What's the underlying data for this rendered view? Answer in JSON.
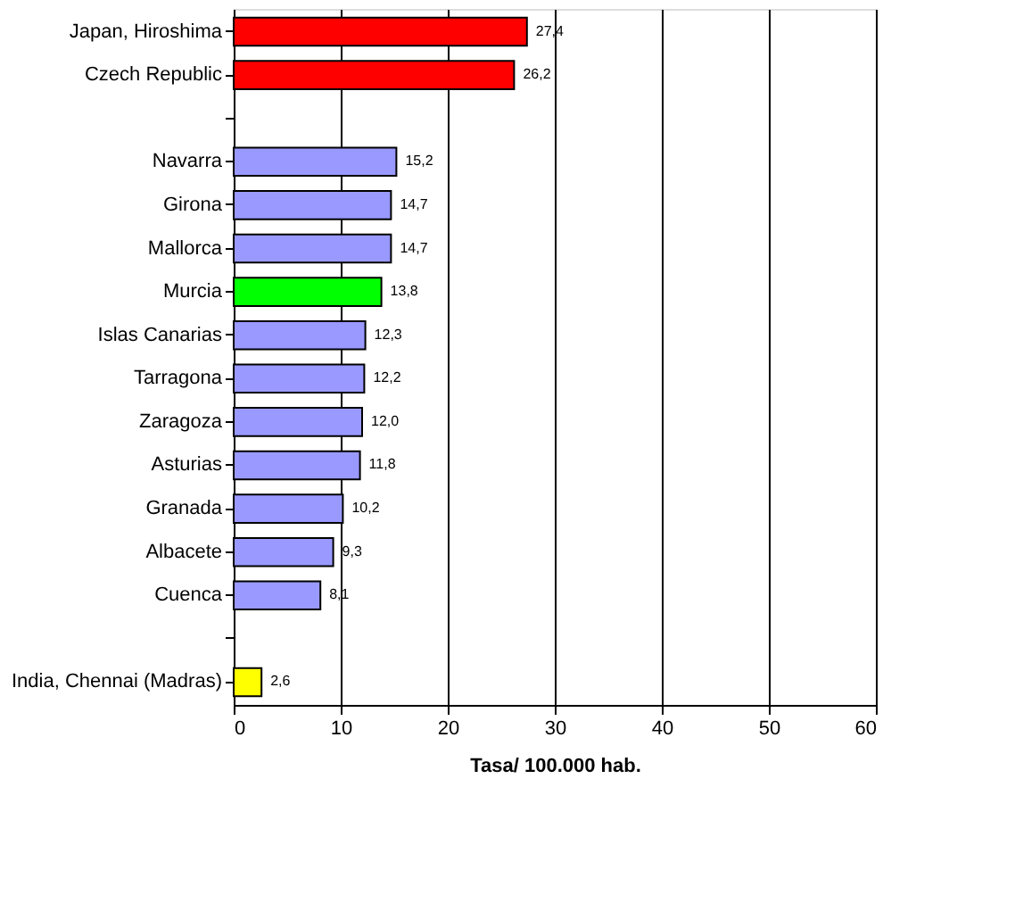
{
  "chart_data": {
    "type": "bar",
    "orientation": "horizontal",
    "xlabel": "Tasa/ 100.000 hab.",
    "categories": [
      "Japan, Hiroshima",
      "Czech Republic",
      null,
      "Navarra",
      "Girona",
      "Mallorca",
      "Murcia",
      "Islas Canarias",
      "Tarragona",
      "Zaragoza",
      "Asturias",
      "Granada",
      "Albacete",
      "Cuenca",
      null,
      "India, Chennai (Madras)"
    ],
    "values": [
      27.4,
      26.2,
      null,
      15.2,
      14.7,
      14.7,
      13.8,
      12.3,
      12.2,
      12.0,
      11.8,
      10.2,
      9.3,
      8.1,
      null,
      2.6
    ],
    "value_labels": [
      "27,4",
      "26,2",
      null,
      "15,2",
      "14,7",
      "14,7",
      "13,8",
      "12,3",
      "12,2",
      "12,0",
      "11,8",
      "10,2",
      "9,3",
      "8,1",
      null,
      "2,6"
    ],
    "colors": [
      "#ff0000",
      "#ff0000",
      null,
      "#9999ff",
      "#9999ff",
      "#9999ff",
      "#00ff00",
      "#9999ff",
      "#9999ff",
      "#9999ff",
      "#9999ff",
      "#9999ff",
      "#9999ff",
      "#9999ff",
      null,
      "#ffff00"
    ],
    "xlim": [
      0,
      60
    ],
    "xticks": [
      0,
      10,
      20,
      30,
      40,
      50,
      60
    ],
    "grid": "x"
  }
}
